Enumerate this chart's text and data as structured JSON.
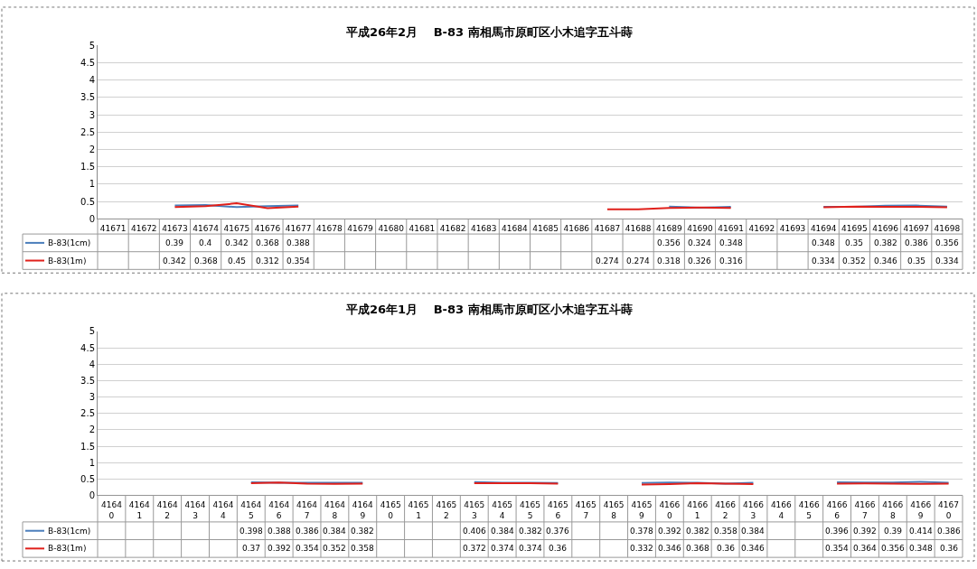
{
  "chart_data": [
    {
      "type": "line",
      "title": "平成26年2月　 B-83 南相馬市原町区小木追字五斗蒔",
      "categories": [
        "41671",
        "41672",
        "41673",
        "41674",
        "41675",
        "41676",
        "41677",
        "41678",
        "41679",
        "41680",
        "41681",
        "41682",
        "41683",
        "41684",
        "41685",
        "41686",
        "41687",
        "41688",
        "41689",
        "41690",
        "41691",
        "41692",
        "41693",
        "41694",
        "41695",
        "41696",
        "41697",
        "41698"
      ],
      "series": [
        {
          "name": "B-83(1cm)",
          "color": "#4a7ebb",
          "values": [
            null,
            null,
            0.39,
            0.4,
            0.342,
            0.368,
            0.388,
            null,
            null,
            null,
            null,
            null,
            null,
            null,
            null,
            null,
            null,
            null,
            0.356,
            0.324,
            0.348,
            null,
            null,
            0.348,
            0.35,
            0.382,
            0.386,
            0.356
          ]
        },
        {
          "name": "B-83(1m)",
          "color": "#e0201b",
          "values": [
            null,
            null,
            0.342,
            0.368,
            0.45,
            0.312,
            0.354,
            null,
            null,
            null,
            null,
            null,
            null,
            null,
            null,
            null,
            0.274,
            0.274,
            0.318,
            0.326,
            0.316,
            null,
            null,
            0.334,
            0.352,
            0.346,
            0.35,
            0.334
          ]
        }
      ],
      "ylim": [
        0,
        5
      ],
      "yticks": [
        0,
        0.5,
        1,
        1.5,
        2,
        2.5,
        3,
        3.5,
        4,
        4.5,
        5
      ],
      "grid": "y",
      "data_labels": true,
      "legend": "bottom left"
    },
    {
      "type": "line",
      "title": "平成26年1月　 B-83 南相馬市原町区小木追字五斗蒔",
      "categories": [
        "41640",
        "41641",
        "41642",
        "41643",
        "41644",
        "41645",
        "41646",
        "41647",
        "41648",
        "41649",
        "41650",
        "41651",
        "41652",
        "41653",
        "41654",
        "41655",
        "41656",
        "41657",
        "41658",
        "41659",
        "41660",
        "41661",
        "41662",
        "41663",
        "41664",
        "41665",
        "41666",
        "41667",
        "41668",
        "41669",
        "41670"
      ],
      "series": [
        {
          "name": "B-83(1cm)",
          "color": "#4a7ebb",
          "values": [
            null,
            null,
            null,
            null,
            null,
            0.398,
            0.388,
            0.386,
            0.384,
            0.382,
            null,
            null,
            null,
            0.406,
            0.384,
            0.382,
            0.376,
            null,
            null,
            0.378,
            0.392,
            0.382,
            0.358,
            0.384,
            null,
            null,
            0.396,
            0.392,
            0.39,
            0.414,
            0.386
          ]
        },
        {
          "name": "B-83(1m)",
          "color": "#e0201b",
          "values": [
            null,
            null,
            null,
            null,
            null,
            0.37,
            0.392,
            0.354,
            0.352,
            0.358,
            null,
            null,
            null,
            0.372,
            0.374,
            0.374,
            0.36,
            null,
            null,
            0.332,
            0.346,
            0.368,
            0.36,
            0.346,
            null,
            null,
            0.354,
            0.364,
            0.356,
            0.348,
            0.36
          ]
        }
      ],
      "ylim": [
        0,
        5
      ],
      "yticks": [
        0,
        0.5,
        1,
        1.5,
        2,
        2.5,
        3,
        3.5,
        4,
        4.5,
        5
      ],
      "grid": "y",
      "data_labels": true,
      "legend": "bottom left"
    }
  ]
}
